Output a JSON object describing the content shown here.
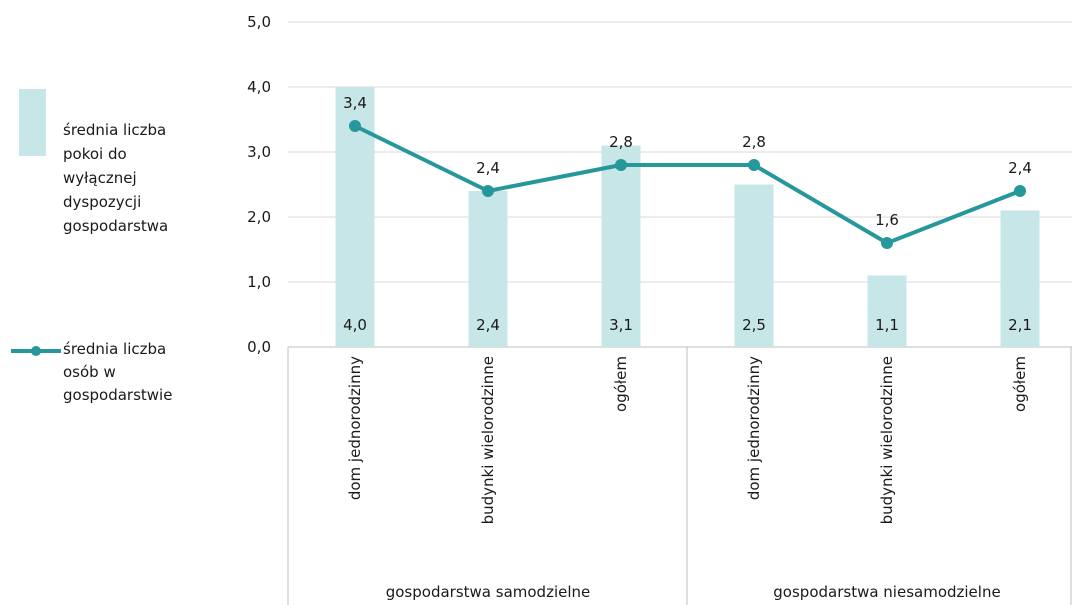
{
  "chart_data": {
    "type": "bar",
    "categories": [
      "dom jednorodzinny",
      "budynki wielorodzinne",
      "ogółem",
      "dom jednorodzinny",
      "budynki wielorodzinne",
      "ogółem"
    ],
    "groups": [
      {
        "label": "gospodarstwa samodzielne",
        "categories": [
          0,
          1,
          2
        ]
      },
      {
        "label": "gospodarstwa niesamodzielne",
        "categories": [
          3,
          4,
          5
        ]
      }
    ],
    "series": [
      {
        "name": "średnia liczba pokoi do wyłącznej dyspozycji gospodarstwa",
        "kind": "bar",
        "values": [
          4.0,
          2.4,
          3.1,
          2.5,
          1.1,
          2.1
        ],
        "labels": [
          "4,0",
          "2,4",
          "3,1",
          "2,5",
          "1,1",
          "2,1"
        ],
        "color": "#c7e6e8"
      },
      {
        "name": "średnia liczba osób w gospodarstwie",
        "kind": "line",
        "values": [
          3.4,
          2.4,
          2.8,
          2.8,
          1.6,
          2.4
        ],
        "labels": [
          "3,4",
          "2,4",
          "2,8",
          "2,8",
          "1,6",
          "2,4"
        ],
        "color": "#26979a"
      }
    ],
    "ylim": [
      0,
      5
    ],
    "yticks": [
      0,
      1,
      2,
      3,
      4,
      5
    ],
    "ytick_labels": [
      "0,0",
      "1,0",
      "2,0",
      "3,0",
      "4,0",
      "5,0"
    ],
    "grid": true,
    "legend_position": "left",
    "title": "",
    "xlabel": "",
    "ylabel": ""
  },
  "legend": {
    "bar_label_lines": [
      "średnia liczba",
      "pokoi do",
      "wyłącznej",
      "dyspozycji",
      "gospodarstwa"
    ],
    "line_label_lines": [
      "średnia liczba",
      "osób w",
      "gospodarstwie"
    ]
  }
}
